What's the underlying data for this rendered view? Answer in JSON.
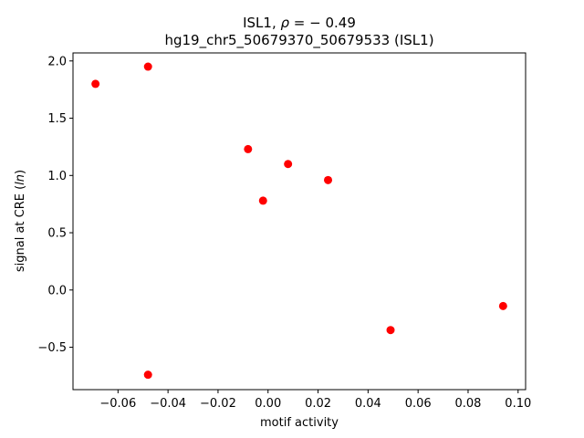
{
  "chart_data": {
    "type": "scatter",
    "title_line1_prefix": "ISL1, ",
    "title_line1_rho": "ρ",
    "title_line1_suffix": " = − 0.49",
    "title_line2": "hg19_chr5_50679370_50679533 (ISL1)",
    "xlabel": "motif activity",
    "ylabel_prefix": "signal at CRE (",
    "ylabel_italic": "ln",
    "ylabel_suffix": ")",
    "xlim": [
      -0.078,
      0.103
    ],
    "ylim": [
      -0.87,
      2.07
    ],
    "x_ticks": [
      -0.06,
      -0.04,
      -0.02,
      0.0,
      0.02,
      0.04,
      0.06,
      0.08,
      0.1
    ],
    "x_tick_labels": [
      "−0.06",
      "−0.04",
      "−0.02",
      "0.00",
      "0.02",
      "0.04",
      "0.06",
      "0.08",
      "0.10"
    ],
    "y_ticks": [
      -0.5,
      0.0,
      0.5,
      1.0,
      1.5,
      2.0
    ],
    "y_tick_labels": [
      "−0.5",
      "0.0",
      "0.5",
      "1.0",
      "1.5",
      "2.0"
    ],
    "grid": false,
    "marker_color": "#ff0000",
    "series": [
      {
        "x": [
          -0.069,
          -0.048,
          -0.008,
          0.008,
          0.024,
          -0.002,
          0.049,
          0.094,
          -0.048
        ],
        "y": [
          1.8,
          1.95,
          1.23,
          1.1,
          0.96,
          0.78,
          -0.35,
          -0.14,
          -0.74
        ]
      }
    ]
  }
}
